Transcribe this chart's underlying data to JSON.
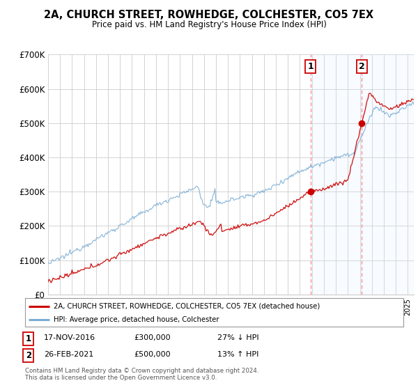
{
  "title": "2A, CHURCH STREET, ROWHEDGE, COLCHESTER, CO5 7EX",
  "subtitle": "Price paid vs. HM Land Registry's House Price Index (HPI)",
  "legend_line1": "2A, CHURCH STREET, ROWHEDGE, COLCHESTER, CO5 7EX (detached house)",
  "legend_line2": "HPI: Average price, detached house, Colchester",
  "transaction1_date": "17-NOV-2016",
  "transaction1_price": "£300,000",
  "transaction1_hpi": "27% ↓ HPI",
  "transaction1_year": 2016.88,
  "transaction1_value": 300000,
  "transaction2_date": "26-FEB-2021",
  "transaction2_price": "£500,000",
  "transaction2_hpi": "13% ↑ HPI",
  "transaction2_year": 2021.15,
  "transaction2_value": 500000,
  "ylim": [
    0,
    700000
  ],
  "xlim_start": 1995,
  "xlim_end": 2025.5,
  "red_color": "#cc0000",
  "blue_color": "#7aadd4",
  "shade_color": "#ddeeff",
  "background_color": "#ffffff",
  "grid_color": "#cccccc",
  "footer": "Contains HM Land Registry data © Crown copyright and database right 2024.\nThis data is licensed under the Open Government Licence v3.0."
}
